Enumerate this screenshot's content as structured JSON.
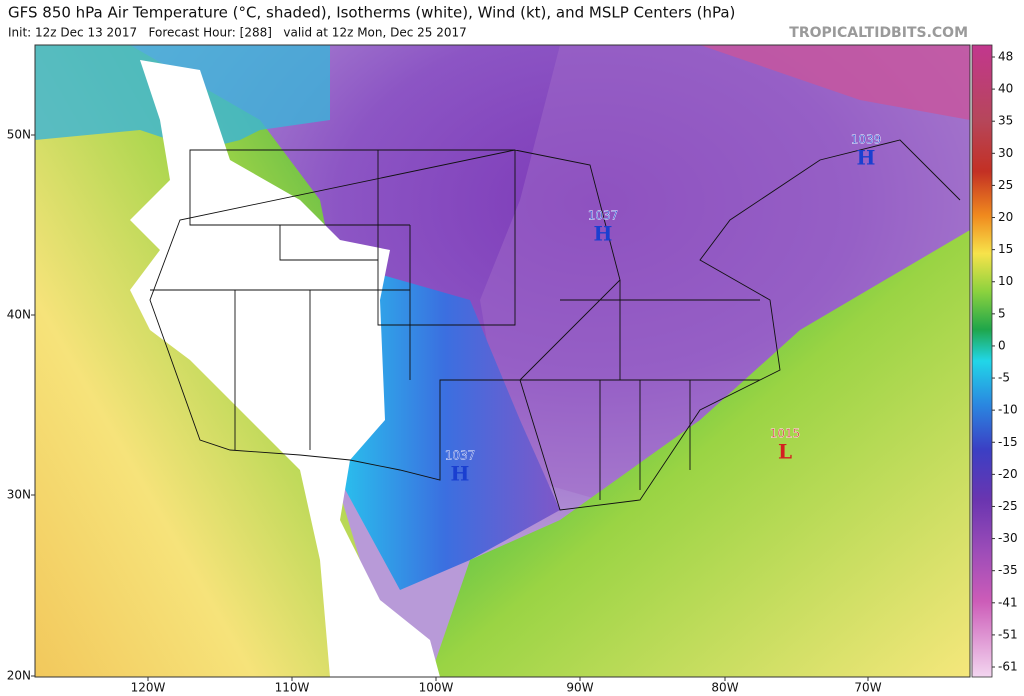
{
  "header": {
    "title": "GFS 850 hPa Air Temperature (°C, shaded), Isotherms (white), Wind (kt), and MSLP Centers (hPa)",
    "subtitle": "Init: 12z Dec 13 2017   Forecast Hour: [288]   valid at 12z Mon, Dec 25 2017",
    "source": "TROPICALTIDBITS.COM"
  },
  "map": {
    "lat_labels": [
      "50N",
      "40N",
      "30N",
      "20N"
    ],
    "lon_labels": [
      "120W",
      "110W",
      "100W",
      "90W",
      "80W",
      "70W"
    ],
    "centers": [
      {
        "value": "1039",
        "symbol": "H"
      },
      {
        "value": "1037",
        "symbol": "H"
      },
      {
        "value": "1037",
        "symbol": "H"
      },
      {
        "value": "1015",
        "symbol": "L"
      }
    ]
  },
  "colorbar": {
    "labels": [
      "48",
      "40",
      "35",
      "30",
      "25",
      "20",
      "15",
      "10",
      "5",
      "0",
      "-5",
      "-10",
      "-15",
      "-20",
      "-25",
      "-30",
      "-35",
      "-41",
      "-51",
      "-61"
    ]
  }
}
